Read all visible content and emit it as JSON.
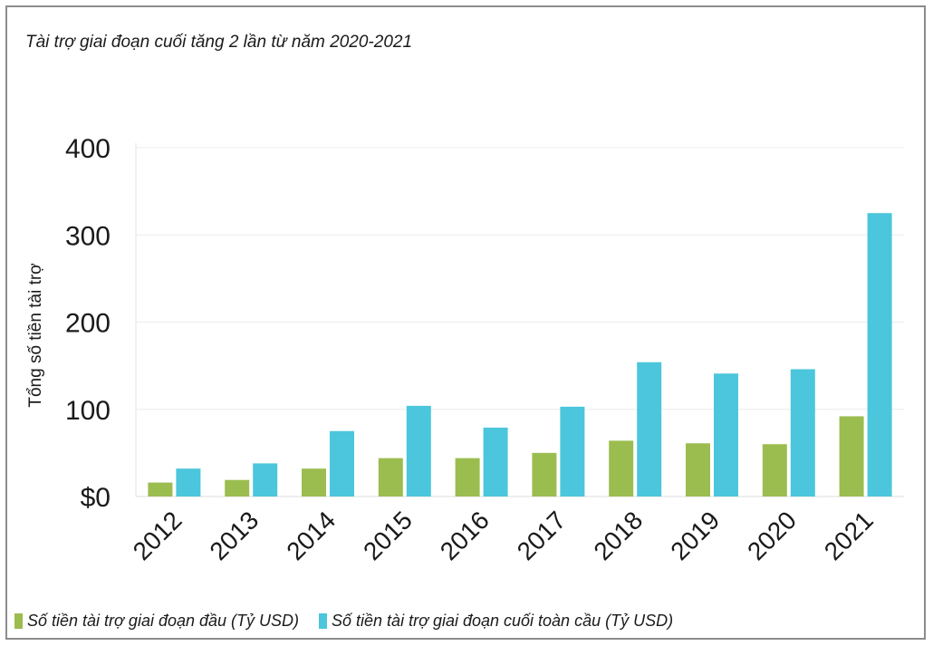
{
  "chart_data": {
    "type": "bar",
    "title": "Tài trợ giai đoạn  cuối tăng 2 lần từ năm 2020-2021",
    "ylabel": "Tổng số tiền tài trợ",
    "xlabel": "",
    "categories": [
      "2012",
      "2013",
      "2014",
      "2015",
      "2016",
      "2017",
      "2018",
      "2019",
      "2020",
      "2021"
    ],
    "series": [
      {
        "name": "Số tiền tài trợ giai đoạn đầu (Tỷ USD)",
        "color": "#9bbd4f",
        "values": [
          16,
          19,
          32,
          44,
          44,
          50,
          64,
          61,
          60,
          92
        ]
      },
      {
        "name": "Số tiền tài trợ giai đoạn cuối toàn cầu (Tỷ USD)",
        "color": "#4bc6dc",
        "values": [
          32,
          38,
          75,
          104,
          79,
          103,
          154,
          141,
          146,
          325
        ]
      }
    ],
    "yticks": [
      "$0",
      "100",
      "200",
      "300",
      "400"
    ],
    "ylim": [
      0,
      400
    ],
    "grid": true,
    "legend": "bottom-left"
  }
}
